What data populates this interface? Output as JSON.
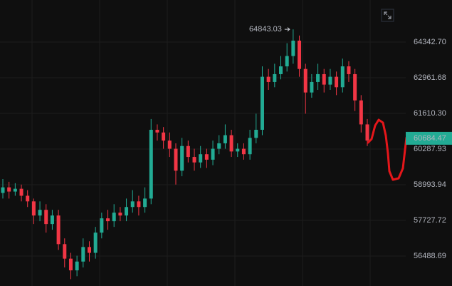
{
  "chart_data": {
    "type": "candlestick",
    "up_color": "#22ab94",
    "down_color": "#f23645",
    "log": true,
    "grid": true,
    "ylim": [
      55469,
      66012
    ],
    "yticks": [
      {
        "value": 64342.7,
        "label": "64342.70"
      },
      62961.68,
      {
        "value": 61610.3,
        "label": "61610.30"
      },
      60287.93,
      58993.94,
      57727.72,
      56488.69
    ],
    "open": [
      58700,
      58900,
      58750,
      58850,
      58600,
      58400,
      57900,
      58100,
      57600,
      57900,
      56900,
      56400,
      56000,
      56300,
      56800,
      56600,
      57300,
      57800,
      57700,
      58000,
      57900,
      58200,
      58400,
      58200,
      58500,
      61000,
      60900,
      60600,
      60300,
      59500,
      60400,
      60000,
      59800,
      60100,
      59900,
      60300,
      60500,
      60800,
      60200,
      60300,
      60100,
      60700,
      61000,
      63000,
      62800,
      63100,
      63400,
      63800,
      64400,
      63300,
      62400,
      62800,
      63100,
      62700,
      63000,
      62600,
      63400,
      63100,
      62100,
      61200
    ],
    "high": [
      59200,
      59100,
      59050,
      59000,
      58800,
      58500,
      58400,
      58300,
      58100,
      58100,
      57100,
      56600,
      56500,
      57100,
      57000,
      57500,
      58000,
      58100,
      58300,
      58200,
      58500,
      58800,
      58600,
      58900,
      61400,
      61200,
      61100,
      60900,
      60500,
      60700,
      60600,
      60300,
      60400,
      60300,
      60600,
      60800,
      61200,
      61000,
      60500,
      60500,
      61000,
      61600,
      63400,
      63300,
      63500,
      63800,
      64300,
      64843.03,
      64600,
      63500,
      63100,
      63500,
      63300,
      63300,
      63200,
      63700,
      63600,
      63300,
      62300,
      61400
    ],
    "low": [
      58500,
      58500,
      58600,
      58400,
      58200,
      57600,
      57700,
      57300,
      57400,
      56700,
      56100,
      55700,
      55800,
      56100,
      56300,
      56400,
      57100,
      57400,
      57500,
      57700,
      57700,
      58000,
      57900,
      58000,
      58300,
      60600,
      60300,
      60000,
      59000,
      59300,
      59800,
      59500,
      59600,
      59600,
      59700,
      60100,
      60300,
      60000,
      60000,
      59900,
      59900,
      60500,
      60800,
      62500,
      62600,
      62900,
      63200,
      63500,
      63000,
      61600,
      62200,
      62500,
      62400,
      62500,
      62300,
      62400,
      62800,
      61700,
      60900,
      60400
    ],
    "close": [
      58900,
      58750,
      58850,
      58600,
      58400,
      57900,
      58100,
      57600,
      57900,
      56900,
      56400,
      56000,
      56300,
      56800,
      56600,
      57300,
      57800,
      57700,
      58000,
      57900,
      58200,
      58400,
      58200,
      58500,
      61000,
      60900,
      60600,
      60300,
      59500,
      60400,
      60000,
      59800,
      60100,
      59900,
      60300,
      60500,
      60800,
      60200,
      60300,
      60100,
      60700,
      61000,
      63000,
      62800,
      63100,
      63400,
      63800,
      64400,
      63300,
      62400,
      62800,
      63100,
      62700,
      63000,
      62600,
      63400,
      63100,
      62100,
      61200,
      60600
    ],
    "last_price": 60684.47
  }
}
